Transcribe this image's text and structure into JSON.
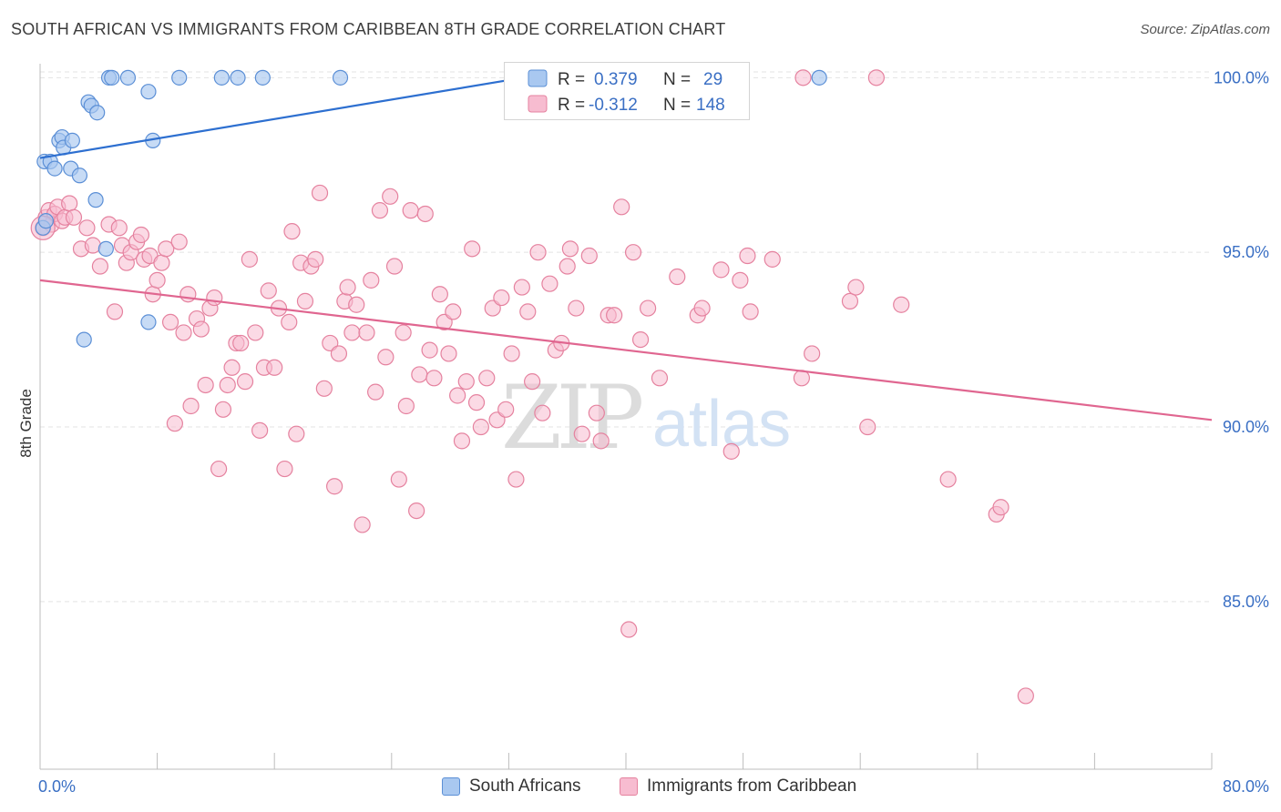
{
  "header": {
    "title": "SOUTH AFRICAN VS IMMIGRANTS FROM CARIBBEAN 8TH GRADE CORRELATION CHART",
    "source": "Source: ZipAtlas.com"
  },
  "watermark": {
    "zip": "ZIP",
    "atlas": "atlas"
  },
  "colors": {
    "blue_fill": "#a9c8f0",
    "blue_stroke": "#5b8fd6",
    "blue_line": "#2d6fd0",
    "pink_fill": "#f7bcd0",
    "pink_stroke": "#e5829f",
    "pink_line": "#e06690",
    "axis_text": "#3a6fc4",
    "grid": "#e3e3e3"
  },
  "legend": {
    "rows": [
      {
        "r_label": "R =",
        "r_value": "0.379",
        "n_label": "N =",
        "n_value": "29"
      },
      {
        "r_label": "R =",
        "r_value": "-0.312",
        "n_label": "N =",
        "n_value": "148"
      }
    ]
  },
  "chart_data": {
    "type": "scatter",
    "title": "SOUTH AFRICAN VS IMMIGRANTS FROM CARIBBEAN 8TH GRADE CORRELATION CHART",
    "xlabel": "",
    "ylabel": "8th Grade",
    "xlim": [
      0,
      80
    ],
    "ylim": [
      80.2,
      100.4
    ],
    "x_tick_labels": [
      "0.0%",
      "80.0%"
    ],
    "y_ticks": [
      85,
      90,
      95,
      100
    ],
    "y_tick_labels": [
      "85.0%",
      "90.0%",
      "95.0%",
      "100.0%"
    ],
    "grid": true,
    "legend_position": "bottom",
    "series": [
      {
        "name": "South Africans",
        "color": "#a9c8f0",
        "r": 0.379,
        "n": 29,
        "trend": {
          "x": [
            0,
            33.0
          ],
          "y": [
            97.7,
            100.0
          ]
        },
        "points": [
          [
            0.3,
            97.6
          ],
          [
            0.7,
            97.6
          ],
          [
            1.0,
            97.4
          ],
          [
            1.3,
            98.2
          ],
          [
            1.5,
            98.3
          ],
          [
            1.6,
            98.0
          ],
          [
            2.2,
            98.2
          ],
          [
            2.1,
            97.4
          ],
          [
            2.7,
            97.2
          ],
          [
            3.3,
            99.3
          ],
          [
            3.5,
            99.2
          ],
          [
            3.9,
            99.0
          ],
          [
            4.5,
            95.1
          ],
          [
            4.7,
            100.0
          ],
          [
            4.9,
            100.0
          ],
          [
            6.0,
            100.0
          ],
          [
            7.4,
            99.6
          ],
          [
            7.7,
            98.2
          ],
          [
            9.5,
            100.0
          ],
          [
            12.4,
            100.0
          ],
          [
            13.5,
            100.0
          ],
          [
            15.2,
            100.0
          ],
          [
            20.5,
            100.0
          ],
          [
            53.2,
            100.0
          ],
          [
            3.8,
            96.5
          ],
          [
            7.4,
            93.0
          ],
          [
            3.0,
            92.5
          ],
          [
            0.2,
            95.7
          ],
          [
            0.4,
            95.9
          ]
        ]
      },
      {
        "name": "Immigrants from Caribbean",
        "color": "#f7bcd0",
        "r": -0.312,
        "n": 148,
        "trend": {
          "x": [
            0,
            80
          ],
          "y": [
            94.2,
            90.2
          ]
        },
        "points": [
          [
            0.2,
            95.7
          ],
          [
            0.4,
            96.0
          ],
          [
            0.6,
            96.2
          ],
          [
            0.8,
            95.8
          ],
          [
            1.0,
            96.1
          ],
          [
            1.2,
            96.3
          ],
          [
            1.5,
            95.9
          ],
          [
            1.7,
            96.0
          ],
          [
            2.0,
            96.4
          ],
          [
            2.3,
            96.0
          ],
          [
            2.8,
            95.1
          ],
          [
            3.2,
            95.7
          ],
          [
            3.6,
            95.2
          ],
          [
            4.1,
            94.6
          ],
          [
            4.7,
            95.8
          ],
          [
            5.1,
            93.3
          ],
          [
            5.4,
            95.7
          ],
          [
            5.6,
            95.2
          ],
          [
            5.9,
            94.7
          ],
          [
            6.2,
            95.0
          ],
          [
            6.6,
            95.3
          ],
          [
            6.9,
            95.5
          ],
          [
            7.1,
            94.8
          ],
          [
            7.5,
            94.9
          ],
          [
            7.7,
            93.8
          ],
          [
            8.0,
            94.2
          ],
          [
            8.3,
            94.7
          ],
          [
            8.6,
            95.1
          ],
          [
            8.9,
            93.0
          ],
          [
            9.2,
            90.1
          ],
          [
            9.5,
            95.3
          ],
          [
            9.8,
            92.7
          ],
          [
            10.1,
            93.8
          ],
          [
            10.3,
            90.6
          ],
          [
            10.7,
            93.1
          ],
          [
            11.0,
            92.8
          ],
          [
            11.3,
            91.2
          ],
          [
            11.6,
            93.4
          ],
          [
            11.9,
            93.7
          ],
          [
            12.2,
            88.8
          ],
          [
            12.5,
            90.5
          ],
          [
            12.8,
            91.2
          ],
          [
            13.1,
            91.7
          ],
          [
            13.4,
            92.4
          ],
          [
            13.7,
            92.4
          ],
          [
            14.0,
            91.3
          ],
          [
            14.3,
            94.8
          ],
          [
            14.7,
            92.7
          ],
          [
            15.0,
            89.9
          ],
          [
            15.3,
            91.7
          ],
          [
            15.6,
            93.9
          ],
          [
            16.0,
            91.7
          ],
          [
            16.3,
            93.4
          ],
          [
            16.7,
            88.8
          ],
          [
            17.0,
            93.0
          ],
          [
            17.2,
            95.6
          ],
          [
            17.5,
            89.8
          ],
          [
            17.8,
            94.7
          ],
          [
            18.1,
            93.6
          ],
          [
            18.5,
            94.6
          ],
          [
            18.8,
            94.8
          ],
          [
            19.1,
            96.7
          ],
          [
            19.4,
            91.1
          ],
          [
            19.8,
            92.4
          ],
          [
            20.1,
            88.3
          ],
          [
            20.4,
            92.1
          ],
          [
            20.8,
            93.6
          ],
          [
            21.0,
            94.0
          ],
          [
            21.3,
            92.7
          ],
          [
            21.6,
            93.5
          ],
          [
            22.0,
            87.2
          ],
          [
            22.3,
            92.7
          ],
          [
            22.6,
            94.2
          ],
          [
            22.9,
            91.0
          ],
          [
            23.2,
            96.2
          ],
          [
            23.6,
            92.0
          ],
          [
            23.9,
            96.6
          ],
          [
            24.2,
            94.6
          ],
          [
            24.5,
            88.5
          ],
          [
            24.8,
            92.7
          ],
          [
            25.0,
            90.6
          ],
          [
            25.3,
            96.2
          ],
          [
            25.7,
            87.6
          ],
          [
            25.9,
            91.5
          ],
          [
            26.3,
            96.1
          ],
          [
            26.6,
            92.2
          ],
          [
            26.9,
            91.4
          ],
          [
            27.3,
            93.8
          ],
          [
            27.6,
            93.0
          ],
          [
            27.9,
            92.1
          ],
          [
            28.2,
            93.3
          ],
          [
            28.5,
            90.9
          ],
          [
            28.8,
            89.6
          ],
          [
            29.1,
            91.3
          ],
          [
            29.5,
            95.1
          ],
          [
            29.8,
            90.7
          ],
          [
            30.1,
            90.0
          ],
          [
            30.5,
            91.4
          ],
          [
            30.9,
            93.4
          ],
          [
            31.2,
            90.2
          ],
          [
            31.5,
            93.7
          ],
          [
            31.8,
            90.5
          ],
          [
            32.2,
            92.1
          ],
          [
            32.5,
            88.5
          ],
          [
            32.9,
            94.0
          ],
          [
            33.3,
            93.3
          ],
          [
            33.6,
            91.3
          ],
          [
            34.0,
            95.0
          ],
          [
            34.3,
            90.4
          ],
          [
            34.8,
            94.1
          ],
          [
            35.2,
            92.2
          ],
          [
            35.6,
            92.4
          ],
          [
            36.0,
            94.6
          ],
          [
            36.2,
            95.1
          ],
          [
            36.6,
            93.4
          ],
          [
            37.0,
            89.8
          ],
          [
            37.5,
            94.9
          ],
          [
            38.0,
            90.4
          ],
          [
            38.3,
            89.6
          ],
          [
            38.8,
            93.2
          ],
          [
            39.2,
            93.2
          ],
          [
            39.7,
            96.3
          ],
          [
            40.2,
            84.2
          ],
          [
            40.5,
            95.0
          ],
          [
            41.0,
            92.5
          ],
          [
            41.5,
            93.4
          ],
          [
            42.3,
            91.4
          ],
          [
            43.5,
            94.3
          ],
          [
            44.9,
            93.2
          ],
          [
            45.2,
            93.4
          ],
          [
            46.5,
            94.5
          ],
          [
            47.2,
            89.3
          ],
          [
            47.8,
            94.2
          ],
          [
            48.3,
            94.9
          ],
          [
            48.5,
            93.3
          ],
          [
            50.0,
            94.8
          ],
          [
            52.0,
            91.4
          ],
          [
            52.7,
            92.1
          ],
          [
            55.3,
            93.6
          ],
          [
            55.7,
            94.0
          ],
          [
            56.5,
            90.0
          ],
          [
            58.8,
            93.5
          ],
          [
            62.0,
            88.5
          ],
          [
            65.3,
            87.5
          ],
          [
            65.6,
            87.7
          ],
          [
            67.3,
            82.3
          ],
          [
            52.1,
            100.0
          ],
          [
            57.1,
            100.0
          ]
        ]
      }
    ]
  }
}
